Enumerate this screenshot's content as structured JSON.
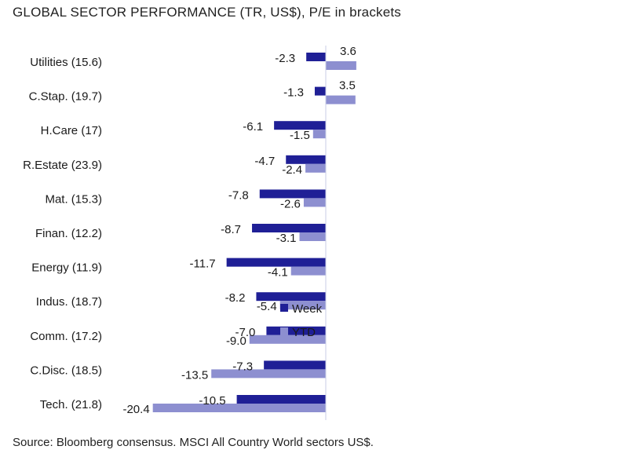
{
  "chart_data": {
    "type": "bar",
    "orientation": "horizontal",
    "title": "GLOBAL SECTOR PERFORMANCE (TR, US$), P/E in brackets",
    "categories": [
      "Utilities (15.6)",
      "C.Stap. (19.7)",
      "H.Care (17)",
      "R.Estate (23.9)",
      "Mat. (15.3)",
      "Finan. (12.2)",
      "Energy (11.9)",
      "Indus. (18.7)",
      "Comm. (17.2)",
      "C.Disc. (18.5)",
      "Tech. (21.8)"
    ],
    "series": [
      {
        "name": "Week",
        "color": "#1f1f96",
        "values": [
          -2.3,
          -1.3,
          -6.1,
          -4.7,
          -7.8,
          -8.7,
          -11.7,
          -8.2,
          -7.0,
          -7.3,
          -10.5
        ],
        "labels": [
          "-2.3",
          "-1.3",
          "-6.1",
          "-4.7",
          "-7.8",
          "-8.7",
          "-11.7",
          "-8.2",
          "-7.0",
          "-7.3",
          "-10.5"
        ]
      },
      {
        "name": "YTD",
        "color": "#8d8fd0",
        "values": [
          3.6,
          3.5,
          -1.5,
          -2.4,
          -2.6,
          -3.1,
          -4.1,
          -5.4,
          -9.0,
          -13.5,
          -20.4
        ],
        "labels": [
          "3.6",
          "3.5",
          "-1.5",
          "-2.4",
          "-2.6",
          "-3.1",
          "-4.1",
          "-5.4",
          "-9.0",
          "-13.5",
          "-20.4"
        ]
      }
    ],
    "xlim": [
      -20.4,
      3.6
    ],
    "legend_position": "center-right",
    "grid": false
  },
  "footer": {
    "source": "Source: Bloomberg consensus. MSCI All Country World sectors US$."
  }
}
